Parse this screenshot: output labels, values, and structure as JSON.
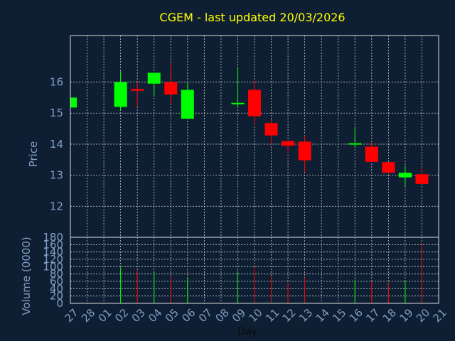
{
  "colors": {
    "background": "#0f1f33",
    "plot_border": "#d8d8d8",
    "grid": "#c8c8c8",
    "title": "#ffff00",
    "axis_text": "#7f9ec4",
    "up": "#00ff00",
    "down": "#ff0000"
  },
  "chart_data": [
    {
      "type": "candlestick",
      "title": "CGEM - last updated 20/03/2026",
      "ylabel": "Price",
      "ylim": [
        11,
        17.5
      ],
      "yticks": [
        "12",
        "13",
        "14",
        "15",
        "16"
      ],
      "ytick_values": [
        12,
        13,
        14,
        15,
        16
      ],
      "grid": true,
      "candles": [
        {
          "day": "27",
          "open": 15.18,
          "close": 15.5,
          "high": 15.5,
          "low": 15.18
        },
        {
          "day": "02",
          "open": 15.2,
          "close": 16.0,
          "high": 16.35,
          "low": 15.1
        },
        {
          "day": "03",
          "open": 15.78,
          "close": 15.72,
          "high": 16.0,
          "low": 15.2
        },
        {
          "day": "04",
          "open": 15.95,
          "close": 16.3,
          "high": 16.3,
          "low": 15.55
        },
        {
          "day": "05",
          "open": 16.0,
          "close": 15.6,
          "high": 16.62,
          "low": 15.28
        },
        {
          "day": "06",
          "open": 14.82,
          "close": 15.75,
          "high": 15.98,
          "low": 14.82
        },
        {
          "day": "09",
          "open": 15.3,
          "close": 15.33,
          "high": 16.5,
          "low": 15.2
        },
        {
          "day": "10",
          "open": 15.75,
          "close": 14.9,
          "high": 16.05,
          "low": 14.62
        },
        {
          "day": "11",
          "open": 14.68,
          "close": 14.28,
          "high": 14.8,
          "low": 13.98
        },
        {
          "day": "12",
          "open": 14.1,
          "close": 13.95,
          "high": 14.1,
          "low": 13.7
        },
        {
          "day": "13",
          "open": 14.08,
          "close": 13.48,
          "high": 14.28,
          "low": 13.1
        },
        {
          "day": "16",
          "open": 14.0,
          "close": 14.03,
          "high": 14.52,
          "low": 13.9
        },
        {
          "day": "17",
          "open": 13.92,
          "close": 13.43,
          "high": 14.08,
          "low": 13.43
        },
        {
          "day": "18",
          "open": 13.42,
          "close": 13.08,
          "high": 13.42,
          "low": 13.08
        },
        {
          "day": "19",
          "open": 12.93,
          "close": 13.08,
          "high": 13.3,
          "low": 12.65
        },
        {
          "day": "20",
          "open": 13.03,
          "close": 12.72,
          "high": 13.25,
          "low": 12.72
        }
      ]
    },
    {
      "type": "bar",
      "ylabel": "Volume (0000)",
      "xlabel": "Day",
      "ylim": [
        0,
        180
      ],
      "yticks": [
        "0",
        "20",
        "40",
        "60",
        "80",
        "100",
        "120",
        "140",
        "160",
        "180"
      ],
      "ytick_values": [
        0,
        20,
        40,
        60,
        80,
        100,
        120,
        140,
        160,
        180
      ],
      "categories": [
        "27",
        "28",
        "01",
        "02",
        "03",
        "04",
        "05",
        "06",
        "07",
        "08",
        "09",
        "10",
        "11",
        "12",
        "13",
        "14",
        "15",
        "16",
        "17",
        "18",
        "19",
        "20",
        "21"
      ],
      "volumes": [
        {
          "day": "02",
          "value": 98,
          "direction": "up"
        },
        {
          "day": "03",
          "value": 90,
          "direction": "down"
        },
        {
          "day": "04",
          "value": 85,
          "direction": "up"
        },
        {
          "day": "05",
          "value": 72,
          "direction": "down"
        },
        {
          "day": "06",
          "value": 70,
          "direction": "up"
        },
        {
          "day": "09",
          "value": 88,
          "direction": "up"
        },
        {
          "day": "10",
          "value": 100,
          "direction": "down"
        },
        {
          "day": "11",
          "value": 75,
          "direction": "down"
        },
        {
          "day": "12",
          "value": 55,
          "direction": "down"
        },
        {
          "day": "13",
          "value": 70,
          "direction": "down"
        },
        {
          "day": "16",
          "value": 65,
          "direction": "up"
        },
        {
          "day": "17",
          "value": 58,
          "direction": "down"
        },
        {
          "day": "18",
          "value": 55,
          "direction": "down"
        },
        {
          "day": "19",
          "value": 60,
          "direction": "up"
        },
        {
          "day": "20",
          "value": 165,
          "direction": "down"
        }
      ]
    }
  ]
}
